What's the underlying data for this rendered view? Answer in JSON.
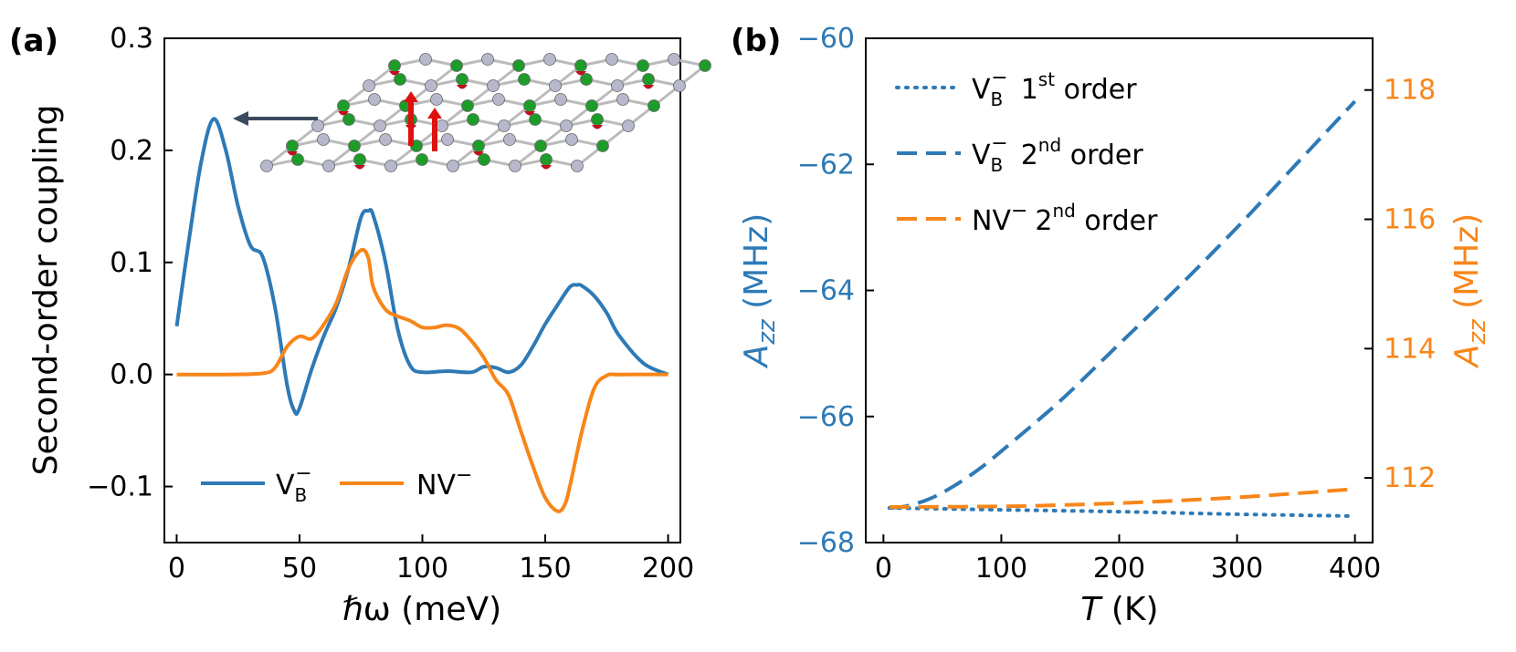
{
  "colors": {
    "blue": "#2e7ab6",
    "orange": "#f7861a",
    "axis": "#000000"
  },
  "chart_data": [
    {
      "panel": "(a)",
      "type": "line",
      "xlabel": "ℏω (meV)",
      "ylabel": "Second-order coupling",
      "xlim": [
        -5,
        205
      ],
      "ylim": [
        -0.15,
        0.3
      ],
      "xticks": [
        0,
        50,
        100,
        150,
        200
      ],
      "xtick_labels": [
        "0",
        "50",
        "100",
        "150",
        "200"
      ],
      "yticks": [
        -0.1,
        0.0,
        0.1,
        0.2,
        0.3
      ],
      "ytick_labels": [
        "−0.1",
        "0.0",
        "0.1",
        "0.2",
        "0.3"
      ],
      "legend_position": "lower-left",
      "series": [
        {
          "name": "V_B^−",
          "legend_main": "V",
          "legend_sub": "B",
          "legend_sup": "−",
          "style": "solid",
          "color": "#2e7ab6",
          "x": [
            0,
            5,
            10,
            15,
            20,
            25,
            30,
            35,
            40,
            45,
            48,
            50,
            55,
            60,
            65,
            70,
            75,
            78,
            80,
            85,
            90,
            95,
            100,
            110,
            120,
            125,
            130,
            135,
            140,
            145,
            150,
            155,
            160,
            163,
            165,
            170,
            175,
            180,
            190,
            200
          ],
          "y": [
            0.043,
            0.12,
            0.19,
            0.228,
            0.2,
            0.15,
            0.115,
            0.105,
            0.06,
            -0.01,
            -0.033,
            -0.03,
            0.005,
            0.035,
            0.06,
            0.095,
            0.14,
            0.146,
            0.142,
            0.1,
            0.04,
            0.008,
            0.002,
            0.003,
            0.002,
            0.007,
            0.006,
            0.002,
            0.008,
            0.025,
            0.045,
            0.062,
            0.078,
            0.08,
            0.079,
            0.07,
            0.055,
            0.035,
            0.01,
            0.0
          ]
        },
        {
          "name": "NV^−",
          "legend_main": "NV",
          "legend_sup": "−",
          "style": "solid",
          "color": "#f7861a",
          "x": [
            0,
            20,
            35,
            40,
            45,
            50,
            55,
            60,
            65,
            70,
            75,
            78,
            80,
            85,
            90,
            95,
            100,
            105,
            110,
            115,
            120,
            125,
            130,
            135,
            140,
            145,
            150,
            155,
            158,
            160,
            165,
            170,
            175,
            180,
            200
          ],
          "y": [
            0,
            0,
            0.001,
            0.006,
            0.025,
            0.034,
            0.032,
            0.045,
            0.064,
            0.095,
            0.111,
            0.104,
            0.078,
            0.058,
            0.052,
            0.048,
            0.042,
            0.042,
            0.044,
            0.041,
            0.03,
            0.015,
            -0.005,
            -0.018,
            -0.05,
            -0.082,
            -0.11,
            -0.122,
            -0.116,
            -0.1,
            -0.05,
            -0.012,
            -0.001,
            0,
            0
          ]
        }
      ],
      "annotations": [
        "arrow pointing to V_B^− peak at ~15 meV",
        "inset: hBN lattice structure with phonon displacement arrows"
      ]
    },
    {
      "panel": "(b)",
      "type": "line",
      "xlabel": "T (K)",
      "xlabel_main": "T",
      "xlabel_unit": " (K)",
      "ylabel_left": "A_zz (MHz)",
      "ylabel_main": "A",
      "ylabel_sub": "zz",
      "ylabel_unit": " (MHz)",
      "ylabel_right": "A_zz (MHz)",
      "xlim": [
        -15,
        415
      ],
      "ylim_left": [
        -68,
        -60
      ],
      "ylim_right": [
        111.0,
        118.8
      ],
      "xticks": [
        0,
        100,
        200,
        300,
        400
      ],
      "xtick_labels": [
        "0",
        "100",
        "200",
        "300",
        "400"
      ],
      "yticks_left": [
        -68,
        -66,
        -64,
        -62,
        -60
      ],
      "ytick_labels_left": [
        "−68",
        "−66",
        "−64",
        "−62",
        "−60"
      ],
      "yticks_right": [
        112,
        114,
        116,
        118
      ],
      "ytick_labels_right": [
        "112",
        "114",
        "116",
        "118"
      ],
      "legend_position": "upper-left",
      "series": [
        {
          "name": "V_B^− 1st order",
          "legend_main": "V",
          "legend_sub": "B",
          "legend_sup": "−",
          "legend_order": "1",
          "legend_order_sup": "st",
          "legend_tail": " order",
          "style": "dotted",
          "axis": "left",
          "color": "#2e7ab6",
          "x": [
            5,
            100,
            200,
            300,
            400
          ],
          "y": [
            -67.45,
            -67.48,
            -67.51,
            -67.55,
            -67.58
          ]
        },
        {
          "name": "V_B^− 2nd order",
          "legend_main": "V",
          "legend_sub": "B",
          "legend_sup": "−",
          "legend_order": "2",
          "legend_order_sup": "nd",
          "legend_tail": " order",
          "style": "dashed",
          "axis": "left",
          "color": "#2e7ab6",
          "x": [
            5,
            20,
            40,
            60,
            80,
            100,
            150,
            200,
            250,
            300,
            350,
            400
          ],
          "y": [
            -67.45,
            -67.42,
            -67.3,
            -67.1,
            -66.85,
            -66.55,
            -65.75,
            -64.85,
            -63.95,
            -63.0,
            -62.0,
            -61.0
          ]
        },
        {
          "name": "NV^− 2nd order",
          "legend_main": "NV",
          "legend_sup": "−",
          "legend_order": "2",
          "legend_order_sup": "nd",
          "legend_tail": " order",
          "style": "dashed",
          "axis": "right",
          "color": "#f7861a",
          "x": [
            5,
            100,
            150,
            200,
            250,
            300,
            350,
            400
          ],
          "y": [
            111.55,
            111.56,
            111.58,
            111.61,
            111.65,
            111.7,
            111.76,
            111.83
          ]
        }
      ]
    }
  ]
}
